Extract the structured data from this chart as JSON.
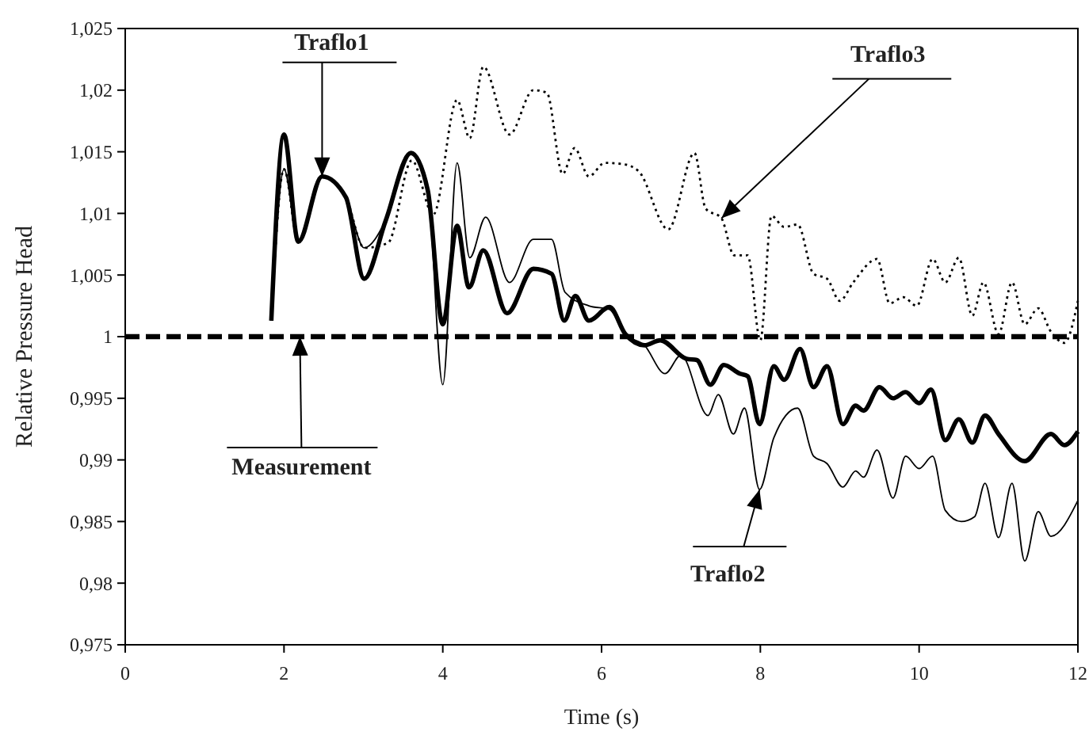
{
  "chart_data": {
    "type": "line",
    "xlabel": "Time (s)",
    "ylabel": "Relative Pressure Head",
    "xlim": [
      0,
      12
    ],
    "xticks": [
      0,
      2,
      4,
      6,
      8,
      10,
      12
    ],
    "ylim": [
      0.975,
      1.025
    ],
    "yticks": [
      {
        "value": 0.975,
        "label": "0,975"
      },
      {
        "value": 0.98,
        "label": "0,98"
      },
      {
        "value": 0.985,
        "label": "0,985"
      },
      {
        "value": 0.99,
        "label": "0,99"
      },
      {
        "value": 0.995,
        "label": "0,995"
      },
      {
        "value": 1,
        "label": "1"
      },
      {
        "value": 1.005,
        "label": "1,005"
      },
      {
        "value": 1.01,
        "label": "1,01"
      },
      {
        "value": 1.015,
        "label": "1,015"
      },
      {
        "value": 1.02,
        "label": "1,02"
      },
      {
        "value": 1.025,
        "label": "1,025"
      }
    ],
    "grid": false,
    "marker": "none",
    "series": [
      {
        "color": "#000000",
        "line_style": "solid",
        "x": [
          1.84,
          2.0,
          2.18,
          2.48,
          2.78,
          3.01,
          3.28,
          3.6,
          3.81,
          4.0,
          4.18,
          4.33,
          4.51,
          4.81,
          5.14,
          5.37,
          5.53,
          5.67,
          5.84,
          6.1,
          6.3,
          6.54,
          6.74,
          7.07,
          7.2,
          7.37,
          7.54,
          7.74,
          7.84,
          7.99,
          8.17,
          8.3,
          8.5,
          8.67,
          8.84,
          9.04,
          9.2,
          9.3,
          9.5,
          9.67,
          9.83,
          10.0,
          10.15,
          10.33,
          10.5,
          10.67,
          10.83,
          11.0,
          11.33,
          11.66,
          11.83,
          12.0
        ],
        "values": [
          1.0013,
          1.0164,
          1.0077,
          1.013,
          1.0113,
          1.0047,
          1.0094,
          1.0149,
          1.0119,
          1.001,
          1.009,
          1.004,
          1.007,
          1.0019,
          1.0055,
          1.0051,
          1.0013,
          1.0033,
          1.0013,
          1.0024,
          1.0002,
          0.9993,
          0.9997,
          0.9982,
          0.9981,
          0.9961,
          0.9977,
          0.997,
          0.9968,
          0.9929,
          0.9976,
          0.9965,
          0.999,
          0.9959,
          0.9976,
          0.9929,
          0.9944,
          0.994,
          0.9959,
          0.995,
          0.9955,
          0.9946,
          0.9957,
          0.9916,
          0.9933,
          0.9914,
          0.9936,
          0.9921,
          0.9899,
          0.9921,
          0.9912,
          0.9923
        ]
      },
      {
        "color": "#000000",
        "line_style": "solid",
        "x": [
          1.84,
          2.0,
          2.18,
          2.48,
          2.78,
          3.01,
          3.28,
          3.6,
          3.81,
          4.0,
          4.18,
          4.34,
          4.54,
          4.84,
          5.14,
          5.37,
          5.54,
          5.84,
          6.1,
          6.3,
          6.54,
          6.8,
          7.0,
          7.34,
          7.47,
          7.66,
          7.8,
          7.99,
          8.17,
          8.47,
          8.67,
          8.84,
          9.04,
          9.2,
          9.3,
          9.47,
          9.67,
          9.83,
          10.0,
          10.17,
          10.33,
          10.53,
          10.7,
          10.83,
          11.0,
          11.17,
          11.33,
          11.5,
          11.66,
          12.0
        ],
        "values": [
          1.0013,
          1.0136,
          1.0077,
          1.013,
          1.0113,
          1.0072,
          1.0094,
          1.0149,
          1.012,
          0.9961,
          1.0141,
          1.0064,
          1.0097,
          1.0044,
          1.0079,
          1.0079,
          1.0036,
          1.0025,
          1.0022,
          1.0002,
          0.9993,
          0.997,
          0.9985,
          0.9936,
          0.9953,
          0.9921,
          0.9942,
          0.9876,
          0.9918,
          0.9942,
          0.9903,
          0.9897,
          0.9878,
          0.9891,
          0.9886,
          0.9908,
          0.9869,
          0.9903,
          0.9893,
          0.9903,
          0.9859,
          0.985,
          0.9854,
          0.9881,
          0.9837,
          0.9881,
          0.9818,
          0.9858,
          0.9838,
          0.9867
        ]
      },
      {
        "color": "#000000",
        "line_style": "dotted",
        "x": [
          1.84,
          2.0,
          2.18,
          2.48,
          2.78,
          3.01,
          3.31,
          3.61,
          3.88,
          4.18,
          4.34,
          4.51,
          4.84,
          5.14,
          5.31,
          5.51,
          5.66,
          5.84,
          6.04,
          6.27,
          6.47,
          6.84,
          7.17,
          7.31,
          7.51,
          7.67,
          7.84,
          8.0,
          8.14,
          8.3,
          8.47,
          8.67,
          8.84,
          9.0,
          9.17,
          9.47,
          9.63,
          9.8,
          9.97,
          10.17,
          10.33,
          10.5,
          10.67,
          10.81,
          11.0,
          11.17,
          11.33,
          11.5,
          11.66,
          11.83,
          12.0
        ],
        "values": [
          1.0013,
          1.0136,
          1.0077,
          1.013,
          1.0113,
          1.0072,
          1.0076,
          1.0143,
          1.0099,
          1.0192,
          1.0161,
          1.0219,
          1.0164,
          1.02,
          1.0198,
          1.0132,
          1.0153,
          1.013,
          1.0141,
          1.014,
          1.0134,
          1.0087,
          1.0149,
          1.0104,
          1.0096,
          1.0066,
          1.0066,
          0.9997,
          1.0098,
          1.0089,
          1.0091,
          1.0051,
          1.0047,
          1.0029,
          1.0044,
          1.0063,
          1.0027,
          1.0032,
          1.0025,
          1.0063,
          1.0044,
          1.0064,
          1.0017,
          1.0044,
          1.0002,
          1.0044,
          1.001,
          1.0023,
          1.0004,
          0.9995,
          1.0029
        ]
      },
      {
        "color": "#000000",
        "line_style": "dashed",
        "x": [
          0,
          12
        ],
        "values": [
          1,
          1
        ]
      }
    ],
    "annotations": [
      {
        "text": "Traflo1",
        "x": 2.48,
        "y": 1.013
      },
      {
        "text": "Traflo3",
        "x": 7.51,
        "y": 1.0096
      },
      {
        "text": "Measurement",
        "x": 2.2,
        "y": 1.0
      },
      {
        "text": "Traflo2",
        "x": 7.99,
        "y": 0.9876
      }
    ]
  }
}
